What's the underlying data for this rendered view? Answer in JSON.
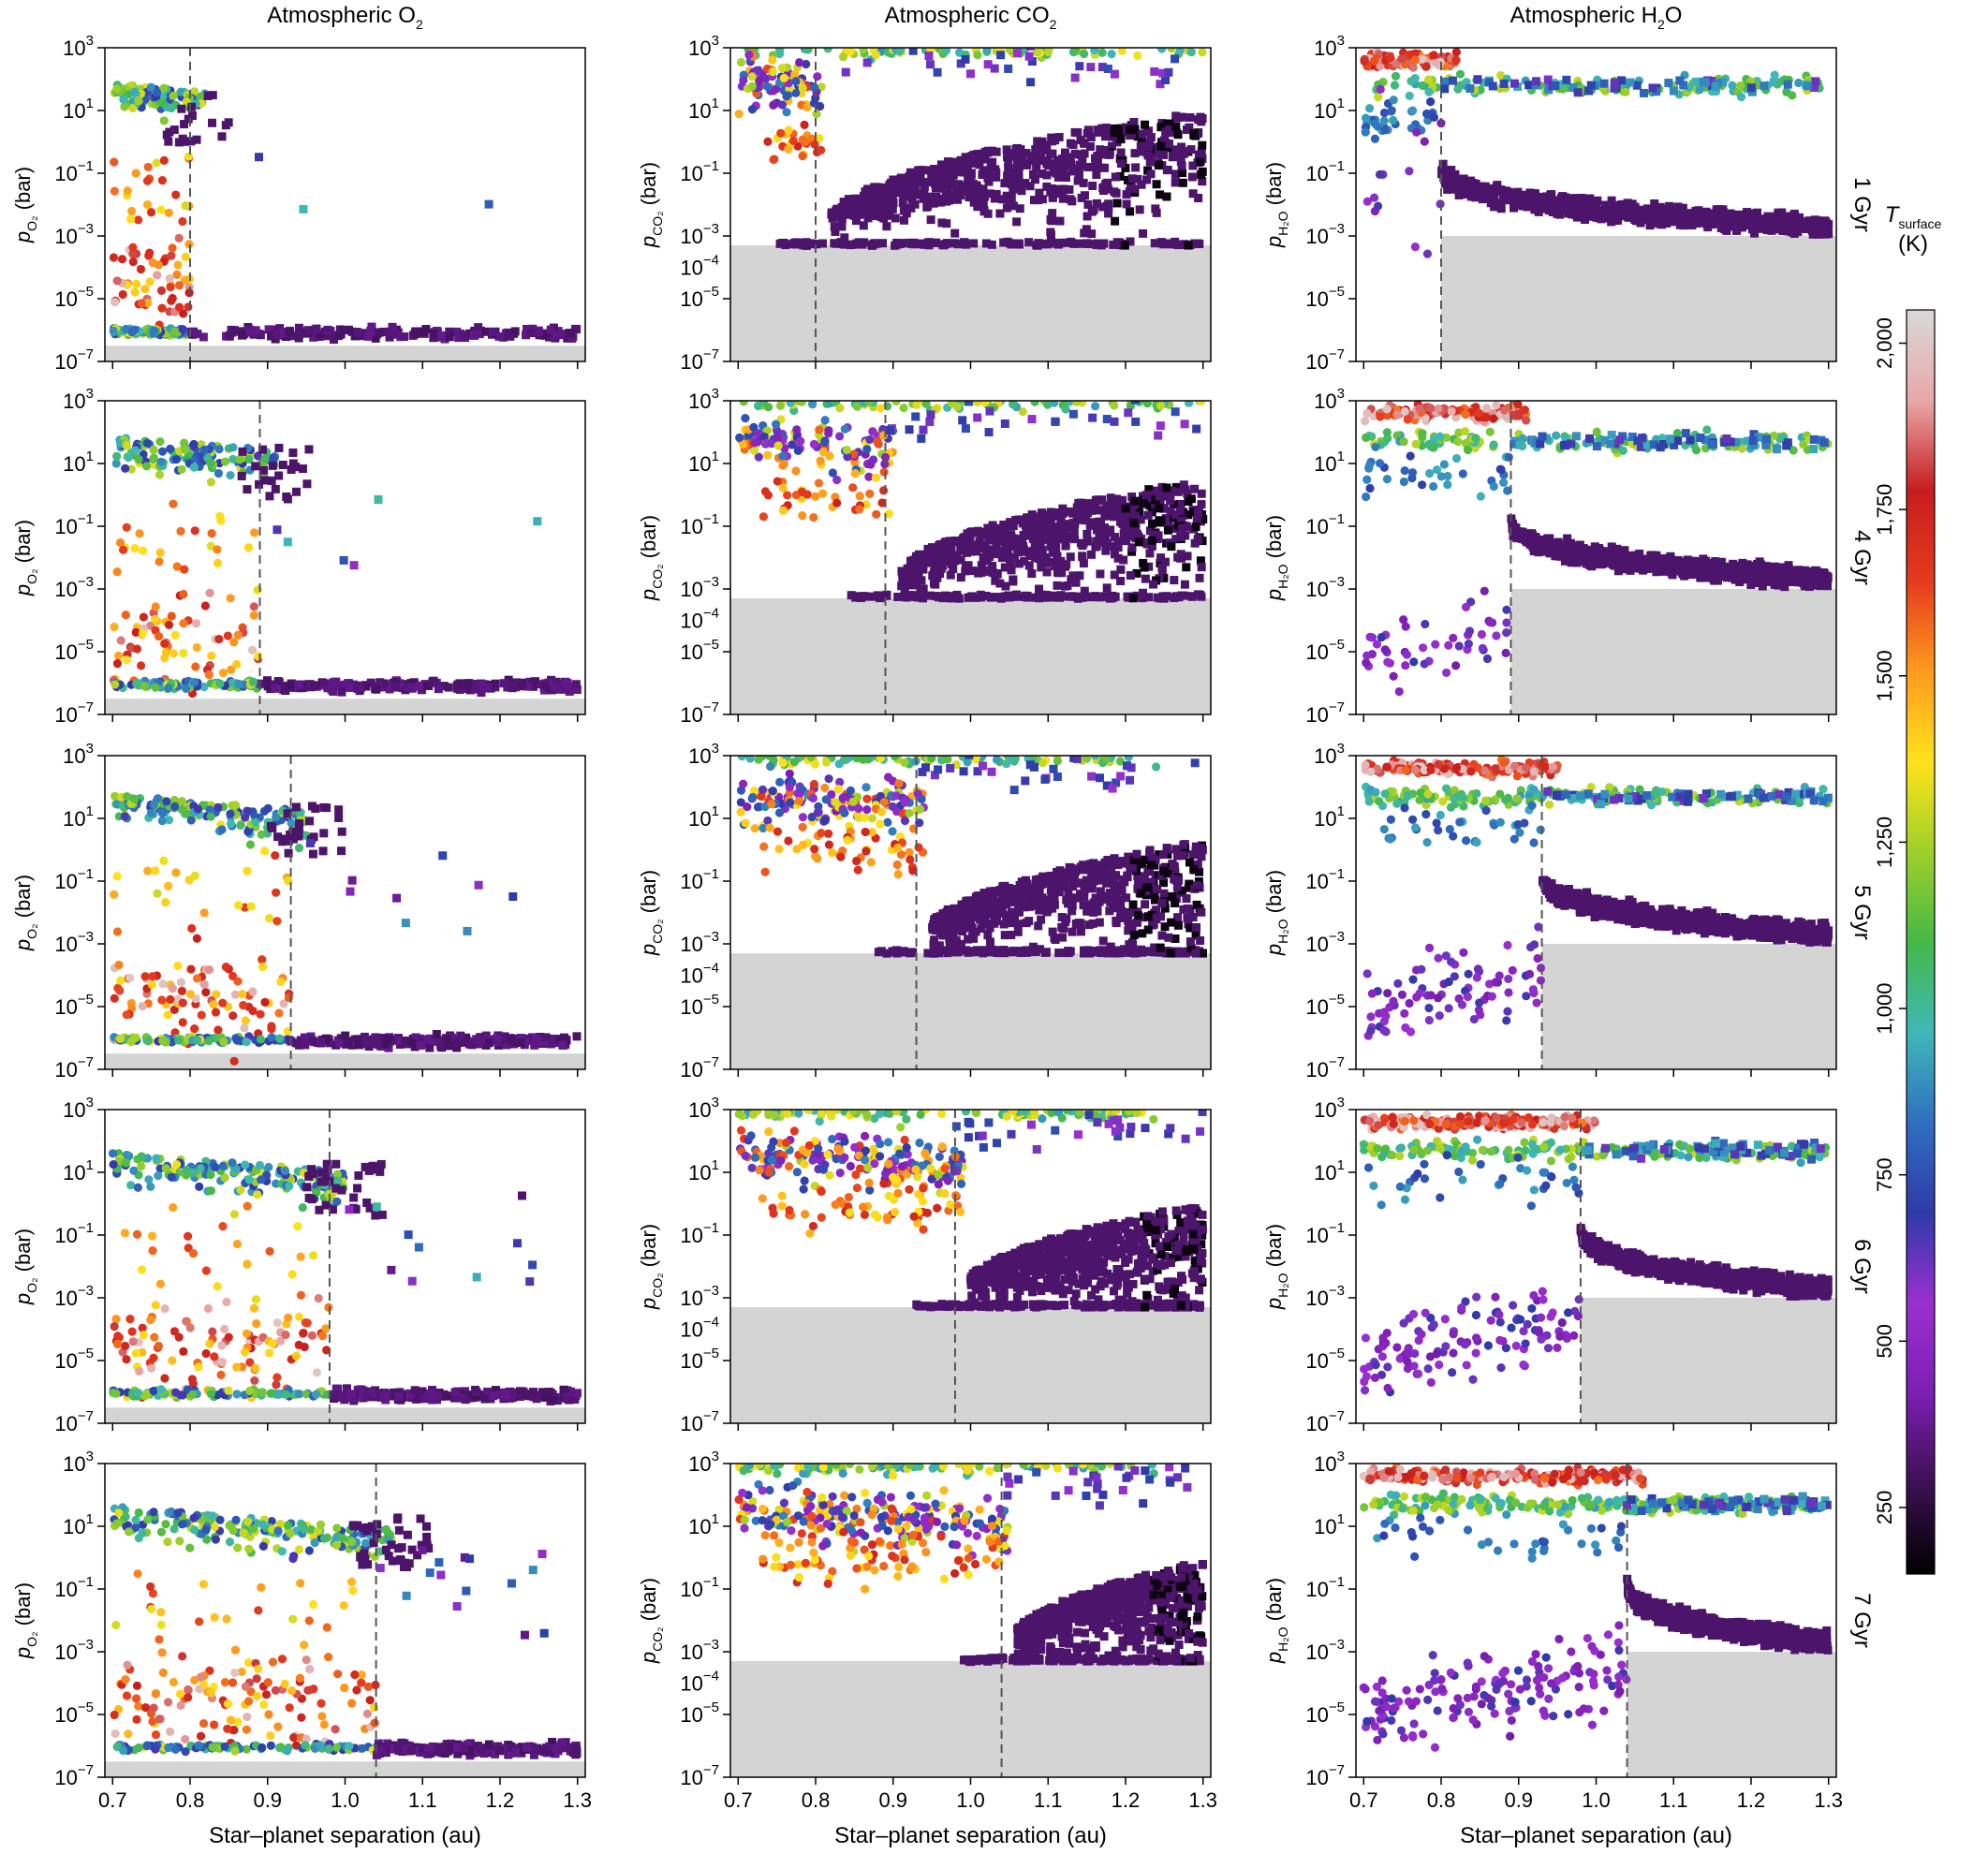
{
  "figure": {
    "column_titles": [
      {
        "prefix": "Atmospheric O",
        "sub": "2"
      },
      {
        "prefix": "Atmospheric CO",
        "sub": "2"
      },
      {
        "prefix": "Atmospheric H",
        "sub": "2",
        "suffix": "O"
      }
    ],
    "y_labels": [
      {
        "var": "p",
        "sub": "O₂",
        "unit": "(bar)"
      },
      {
        "var": "p",
        "sub": "CO₂",
        "unit": "(bar)"
      },
      {
        "var": "p",
        "sub": "H₂O",
        "unit": "(bar)"
      }
    ],
    "x_label": "Star–planet separation (au)",
    "x_ticks": [
      "0.7",
      "0.8",
      "0.9",
      "1.0",
      "1.1",
      "1.2",
      "1.3"
    ],
    "row_labels": [
      "1 Gyr",
      "4 Gyr",
      "5 Gyr",
      "6 Gyr",
      "7 Gyr"
    ],
    "colorbar": {
      "label_var": "T",
      "label_sub": "surface",
      "label_unit": "(K)",
      "ticks": [
        "250",
        "500",
        "750",
        "1,000",
        "1,250",
        "1,500",
        "1,750",
        "2,000"
      ],
      "range": [
        150,
        2050
      ],
      "stops": [
        "#000000",
        "#3c1053",
        "#7d1fb3",
        "#9b2fd0",
        "#2f3aa8",
        "#2f6fc0",
        "#3fb8b8",
        "#45b847",
        "#9fd02a",
        "#ffe21a",
        "#ff9a1e",
        "#e53a1e",
        "#c61d1d",
        "#e8a8a8",
        "#d9d9d9"
      ]
    }
  },
  "chart_data": {
    "type": "scatter",
    "x_axis": {
      "label": "Star–planet separation (au)",
      "range": [
        0.69,
        1.31
      ],
      "ticks": [
        0.7,
        0.8,
        0.9,
        1.0,
        1.1,
        1.2,
        1.3
      ]
    },
    "y_axis": {
      "scale": "log",
      "range_log10": [
        -7,
        3
      ],
      "tick_exponents": [
        3,
        1,
        -1,
        -3,
        -5,
        -7
      ]
    },
    "columns": [
      "O2",
      "CO2",
      "H2O"
    ],
    "rows": [
      {
        "age": "1 Gyr",
        "inner_edge_au": 0.8,
        "o2_max_bar": 100,
        "co2_magma_median_bar": 80,
        "h2o_magma_median_bar": 60,
        "co2_solid_max_bar": 10,
        "h2o_solid_max_bar": 0.1
      },
      {
        "age": "4 Gyr",
        "inner_edge_au": 0.89,
        "o2_max_bar": 100,
        "co2_magma_median_bar": 60,
        "h2o_magma_median_bar": 50,
        "co2_solid_max_bar": 3,
        "h2o_solid_max_bar": 0.1
      },
      {
        "age": "5 Gyr",
        "inner_edge_au": 0.93,
        "o2_max_bar": 80,
        "co2_magma_median_bar": 50,
        "h2o_magma_median_bar": 50,
        "co2_solid_max_bar": 2,
        "h2o_solid_max_bar": 0.1
      },
      {
        "age": "6 Gyr",
        "inner_edge_au": 0.98,
        "o2_max_bar": 60,
        "co2_magma_median_bar": 40,
        "h2o_magma_median_bar": 50,
        "co2_solid_max_bar": 1,
        "h2o_solid_max_bar": 0.1
      },
      {
        "age": "7 Gyr",
        "inner_edge_au": 1.04,
        "o2_max_bar": 60,
        "co2_magma_median_bar": 30,
        "h2o_magma_median_bar": 50,
        "co2_solid_max_bar": 0.8,
        "h2o_solid_max_bar": 0.1
      }
    ],
    "detection_floor_log10": {
      "O2": -6.5,
      "CO2": -3.3,
      "H2O": -3.0
    },
    "h2o_floor_from_edge": true,
    "temperature_range_K": [
      150,
      2050
    ]
  }
}
